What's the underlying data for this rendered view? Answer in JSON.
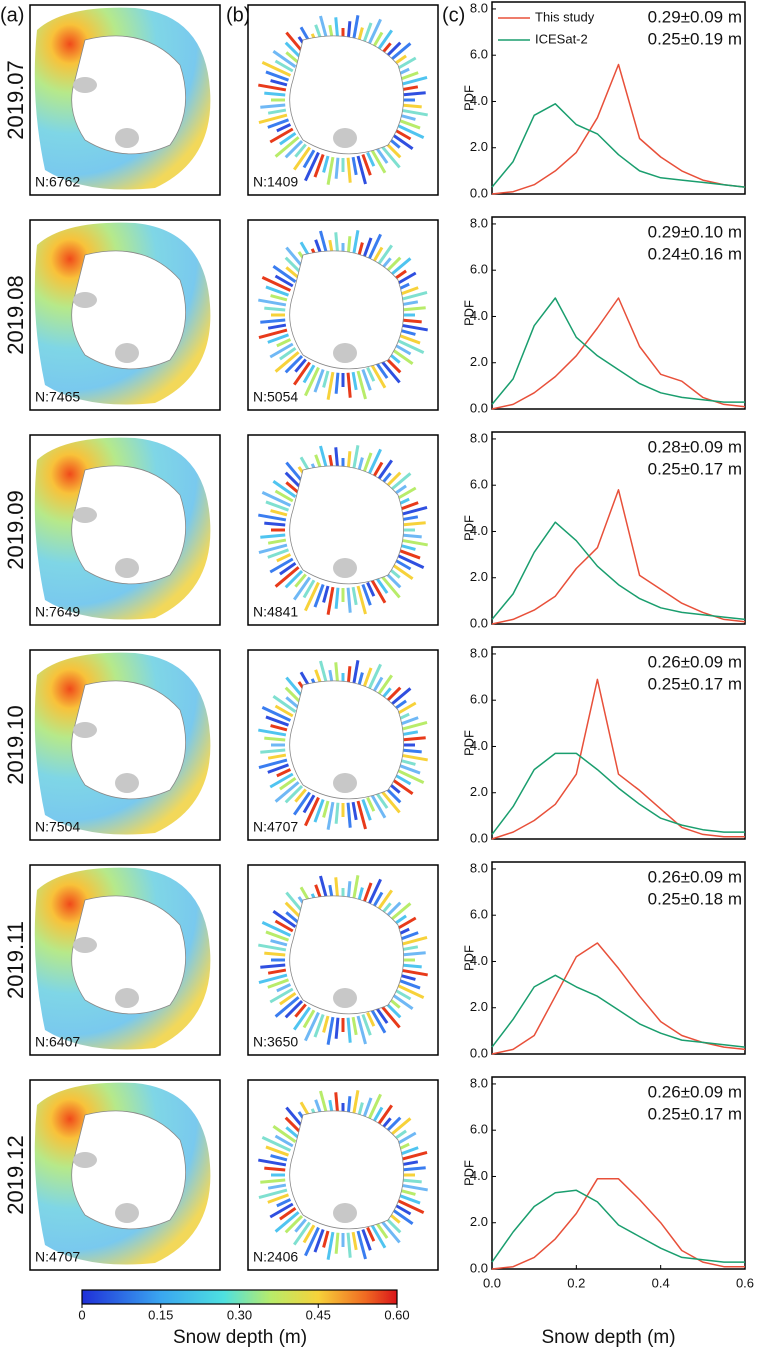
{
  "panel_labels": [
    "(a)",
    "(b)",
    "(c)"
  ],
  "rows": [
    {
      "month": "2019.07",
      "n_a": "N:6762",
      "n_b": "N:1409"
    },
    {
      "month": "2019.08",
      "n_a": "N:7465",
      "n_b": "N:5054"
    },
    {
      "month": "2019.09",
      "n_a": "N:7649",
      "n_b": "N:4841"
    },
    {
      "month": "2019.10",
      "n_a": "N:7504",
      "n_b": "N:4707"
    },
    {
      "month": "2019.11",
      "n_a": "N:6407",
      "n_b": "N:3650"
    },
    {
      "month": "2019.12",
      "n_a": "N:4707",
      "n_b": "N:2406"
    }
  ],
  "colorbar": {
    "label": "Snow depth (m)",
    "lim": [
      0,
      0.6
    ],
    "ticks": [
      0,
      0.15,
      {
        "value": 0.3,
        "label": "0.30"
      },
      0.45,
      {
        "value": 0.6,
        "label": "0.60"
      }
    ]
  },
  "chart_data": [
    {
      "type": "line",
      "ylabel": "PDF",
      "legend": "upper left",
      "x": [
        0,
        0.05,
        0.1,
        0.15,
        0.2,
        0.25,
        0.3,
        0.35,
        0.4,
        0.45,
        0.5,
        0.55,
        0.6
      ],
      "xlim": [
        0,
        0.6
      ],
      "ylim": [
        0,
        8.3
      ],
      "yticks": [
        {
          "value": 0,
          "label": "0.0"
        },
        {
          "value": 2,
          "label": "2.0"
        },
        {
          "value": 4,
          "label": "4.0"
        },
        {
          "value": 6,
          "label": "6.0"
        },
        {
          "value": 8,
          "label": "8.0"
        }
      ],
      "annotations": [
        "0.29±0.09 m",
        "0.25±0.19 m"
      ],
      "series": [
        {
          "name": "This study",
          "color": "#e8503a",
          "values": [
            0,
            0.1,
            0.4,
            1.0,
            1.8,
            3.3,
            5.6,
            2.4,
            1.6,
            1.0,
            0.6,
            0.4,
            0.3
          ]
        },
        {
          "name": "ICESat-2",
          "color": "#1a9e6e",
          "values": [
            0.3,
            1.4,
            3.4,
            3.9,
            3.0,
            2.6,
            1.7,
            1.0,
            0.7,
            0.6,
            0.5,
            0.4,
            0.3
          ]
        }
      ]
    },
    {
      "type": "line",
      "ylabel": "PDF",
      "x": [
        0,
        0.05,
        0.1,
        0.15,
        0.2,
        0.25,
        0.3,
        0.35,
        0.4,
        0.45,
        0.5,
        0.55,
        0.6
      ],
      "xlim": [
        0,
        0.6
      ],
      "ylim": [
        0,
        8.3
      ],
      "yticks": [
        {
          "value": 0,
          "label": "0.0"
        },
        {
          "value": 2,
          "label": "2.0"
        },
        {
          "value": 4,
          "label": "4.0"
        },
        {
          "value": 6,
          "label": "6.0"
        },
        {
          "value": 8,
          "label": "8.0"
        }
      ],
      "annotations": [
        "0.29±0.10 m",
        "0.24±0.16 m"
      ],
      "series": [
        {
          "name": "This study",
          "color": "#e8503a",
          "values": [
            0,
            0.2,
            0.7,
            1.4,
            2.3,
            3.5,
            4.8,
            2.7,
            1.5,
            1.2,
            0.5,
            0.2,
            0.1
          ]
        },
        {
          "name": "ICESat-2",
          "color": "#1a9e6e",
          "values": [
            0.2,
            1.3,
            3.6,
            4.8,
            3.1,
            2.3,
            1.7,
            1.1,
            0.7,
            0.5,
            0.4,
            0.3,
            0.3
          ]
        }
      ]
    },
    {
      "type": "line",
      "ylabel": "PDF",
      "x": [
        0,
        0.05,
        0.1,
        0.15,
        0.2,
        0.25,
        0.3,
        0.35,
        0.4,
        0.45,
        0.5,
        0.55,
        0.6
      ],
      "xlim": [
        0,
        0.6
      ],
      "ylim": [
        0,
        8.3
      ],
      "yticks": [
        {
          "value": 0,
          "label": "0.0"
        },
        {
          "value": 2,
          "label": "2.0"
        },
        {
          "value": 4,
          "label": "4.0"
        },
        {
          "value": 6,
          "label": "6.0"
        },
        {
          "value": 8,
          "label": "8.0"
        }
      ],
      "annotations": [
        "0.28±0.09 m",
        "0.25±0.17 m"
      ],
      "series": [
        {
          "name": "This study",
          "color": "#e8503a",
          "values": [
            0,
            0.2,
            0.6,
            1.2,
            2.4,
            3.3,
            5.8,
            2.1,
            1.5,
            0.9,
            0.5,
            0.2,
            0.1
          ]
        },
        {
          "name": "ICESat-2",
          "color": "#1a9e6e",
          "values": [
            0.2,
            1.3,
            3.1,
            4.4,
            3.6,
            2.5,
            1.7,
            1.1,
            0.7,
            0.5,
            0.4,
            0.3,
            0.2
          ]
        }
      ]
    },
    {
      "type": "line",
      "ylabel": "PDF",
      "x": [
        0,
        0.05,
        0.1,
        0.15,
        0.2,
        0.25,
        0.3,
        0.35,
        0.4,
        0.45,
        0.5,
        0.55,
        0.6
      ],
      "xlim": [
        0,
        0.6
      ],
      "ylim": [
        0,
        8.3
      ],
      "yticks": [
        {
          "value": 0,
          "label": "0.0"
        },
        {
          "value": 2,
          "label": "2.0"
        },
        {
          "value": 4,
          "label": "4.0"
        },
        {
          "value": 6,
          "label": "6.0"
        },
        {
          "value": 8,
          "label": "8.0"
        }
      ],
      "annotations": [
        "0.26±0.09 m",
        "0.25±0.17 m"
      ],
      "series": [
        {
          "name": "This study",
          "color": "#e8503a",
          "values": [
            0,
            0.3,
            0.8,
            1.5,
            2.8,
            6.9,
            2.8,
            2.1,
            1.3,
            0.5,
            0.2,
            0.1,
            0.1
          ]
        },
        {
          "name": "ICESat-2",
          "color": "#1a9e6e",
          "values": [
            0.2,
            1.4,
            3.0,
            3.7,
            3.7,
            3.0,
            2.2,
            1.5,
            0.9,
            0.6,
            0.4,
            0.3,
            0.3
          ]
        }
      ]
    },
    {
      "type": "line",
      "ylabel": "PDF",
      "x": [
        0,
        0.05,
        0.1,
        0.15,
        0.2,
        0.25,
        0.3,
        0.35,
        0.4,
        0.45,
        0.5,
        0.55,
        0.6
      ],
      "xlim": [
        0,
        0.6
      ],
      "ylim": [
        0,
        8.3
      ],
      "yticks": [
        {
          "value": 0,
          "label": "0.0"
        },
        {
          "value": 2,
          "label": "2.0"
        },
        {
          "value": 4,
          "label": "4.0"
        },
        {
          "value": 6,
          "label": "6.0"
        },
        {
          "value": 8,
          "label": "8.0"
        }
      ],
      "annotations": [
        "0.26±0.09 m",
        "0.25±0.18 m"
      ],
      "series": [
        {
          "name": "This study",
          "color": "#e8503a",
          "values": [
            0,
            0.2,
            0.8,
            2.5,
            4.2,
            4.8,
            3.7,
            2.5,
            1.4,
            0.8,
            0.5,
            0.3,
            0.2
          ]
        },
        {
          "name": "ICESat-2",
          "color": "#1a9e6e",
          "values": [
            0.3,
            1.5,
            2.9,
            3.4,
            2.9,
            2.5,
            1.9,
            1.3,
            0.9,
            0.6,
            0.5,
            0.4,
            0.3
          ]
        }
      ]
    },
    {
      "type": "line",
      "ylabel": "PDF",
      "xlabel": "Snow depth (m)",
      "x": [
        0,
        0.05,
        0.1,
        0.15,
        0.2,
        0.25,
        0.3,
        0.35,
        0.4,
        0.45,
        0.5,
        0.55,
        0.6
      ],
      "xlim": [
        0,
        0.6
      ],
      "ylim": [
        0,
        8.3
      ],
      "xticks": [
        {
          "value": 0,
          "label": "0.0"
        },
        0.2,
        0.4,
        0.6
      ],
      "yticks": [
        {
          "value": 0,
          "label": "0.0"
        },
        {
          "value": 2,
          "label": "2.0"
        },
        {
          "value": 4,
          "label": "4.0"
        },
        {
          "value": 6,
          "label": "6.0"
        },
        {
          "value": 8,
          "label": "8.0"
        }
      ],
      "annotations": [
        "0.26±0.09 m",
        "0.25±0.17 m"
      ],
      "series": [
        {
          "name": "This study",
          "color": "#e8503a",
          "values": [
            0,
            0.1,
            0.5,
            1.3,
            2.4,
            3.9,
            3.9,
            3.0,
            2.0,
            0.8,
            0.3,
            0.1,
            0.1
          ]
        },
        {
          "name": "ICESat-2",
          "color": "#1a9e6e",
          "values": [
            0.3,
            1.6,
            2.7,
            3.3,
            3.4,
            2.9,
            1.9,
            1.4,
            0.9,
            0.5,
            0.4,
            0.3,
            0.3
          ]
        }
      ]
    }
  ]
}
